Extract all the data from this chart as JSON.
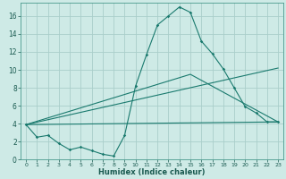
{
  "title": "",
  "xlabel": "Humidex (Indice chaleur)",
  "ylabel": "",
  "bg_color": "#ceeae6",
  "line_color": "#1a7a6e",
  "grid_color": "#aaceca",
  "xlim": [
    -0.5,
    23.5
  ],
  "ylim": [
    0,
    17.5
  ],
  "xticks": [
    0,
    1,
    2,
    3,
    4,
    5,
    6,
    7,
    8,
    9,
    10,
    11,
    12,
    13,
    14,
    15,
    16,
    17,
    18,
    19,
    20,
    21,
    22,
    23
  ],
  "yticks": [
    0,
    2,
    4,
    6,
    8,
    10,
    12,
    14,
    16
  ],
  "line1_x": [
    0,
    1,
    2,
    3,
    4,
    5,
    6,
    7,
    8,
    9,
    10,
    11,
    12,
    13,
    14,
    15,
    16,
    17,
    18,
    19,
    20,
    21,
    22,
    23
  ],
  "line1_y": [
    3.9,
    2.5,
    2.7,
    1.8,
    1.1,
    1.4,
    1.0,
    0.6,
    0.4,
    2.7,
    8.2,
    11.7,
    15.0,
    16.0,
    17.0,
    16.4,
    13.2,
    11.8,
    10.1,
    8.0,
    5.9,
    5.2,
    4.2,
    4.2
  ],
  "line2_x": [
    0,
    23
  ],
  "line2_y": [
    3.9,
    4.2
  ],
  "line3_x": [
    0,
    23
  ],
  "line3_y": [
    3.9,
    10.2
  ],
  "line4_x": [
    0,
    15,
    23
  ],
  "line4_y": [
    3.9,
    9.5,
    4.2
  ],
  "xlabel_fontsize": 6.0,
  "tick_fontsize": 4.5,
  "ytick_fontsize": 5.5,
  "linewidth": 0.8,
  "markersize": 1.8
}
